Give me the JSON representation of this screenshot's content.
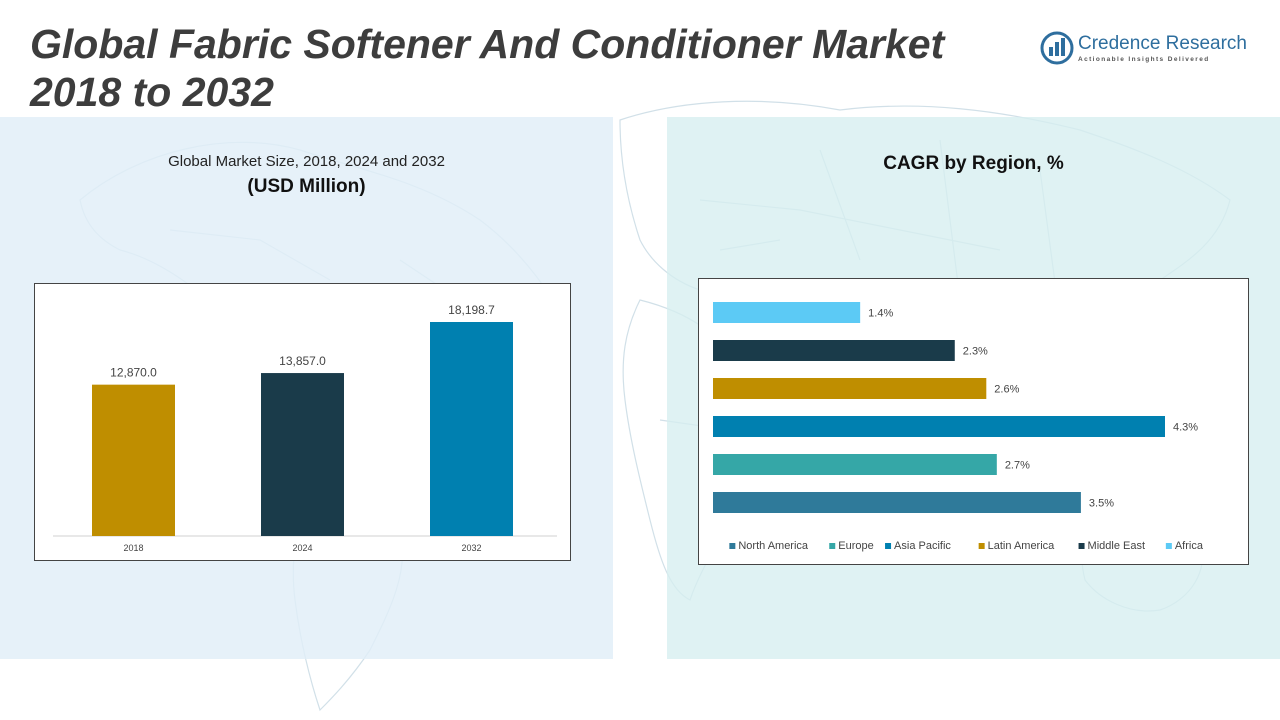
{
  "title": "Global Fabric Softener And Conditioner Market 2018 to 2032",
  "logo": {
    "name": "Credence Research",
    "tagline": "Actionable Insights Delivered"
  },
  "left_panel": {
    "title": "Global Market Size, 2018, 2024 and 2032",
    "unit": "(USD Million)"
  },
  "right_panel": {
    "title": "CAGR by Region, %"
  },
  "chart_data": [
    {
      "type": "bar",
      "title": "Global Market Size, 2018, 2024 and 2032",
      "ylabel": "",
      "xlabel": "",
      "categories": [
        "2018",
        "2024",
        "2032"
      ],
      "values": [
        12870.0,
        13857.0,
        18198.7
      ],
      "data_labels": [
        "12,870.0",
        "13,857.0",
        "18,198.7"
      ],
      "colors": [
        "#bf8e00",
        "#1a3b4a",
        "#0080b0"
      ],
      "grid": false
    },
    {
      "type": "bar",
      "orientation": "horizontal",
      "title": "CAGR by Region, %",
      "categories": [
        "North America",
        "Europe",
        "Asia Pacific",
        "Latin America",
        "Middle East",
        "Africa"
      ],
      "values": [
        3.5,
        2.7,
        4.3,
        2.6,
        2.3,
        1.4
      ],
      "data_labels": [
        "3.5%",
        "2.7%",
        "4.3%",
        "2.6%",
        "2.3%",
        "1.4%"
      ],
      "colors": [
        "#2f7a9a",
        "#35a7a7",
        "#0080b0",
        "#bf8e00",
        "#1a3b4a",
        "#5ccaf5"
      ],
      "legend": "bottom",
      "grid": false
    }
  ]
}
